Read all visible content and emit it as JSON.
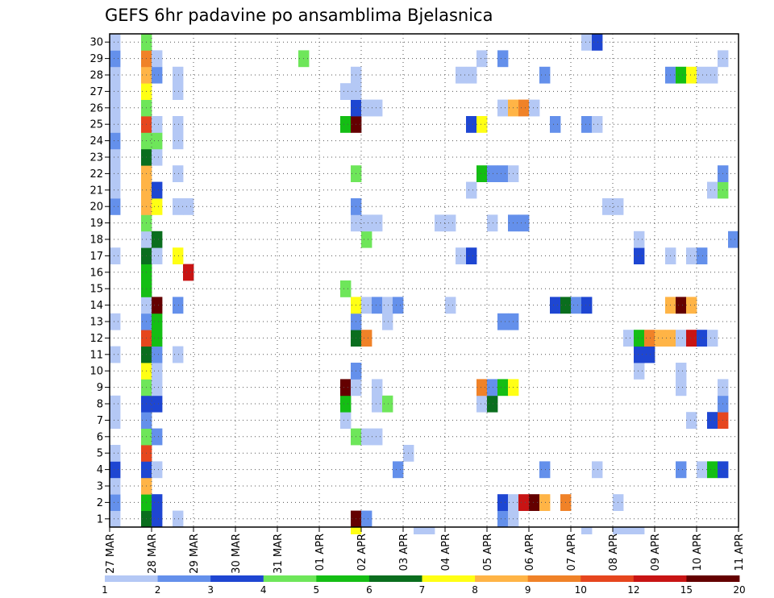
{
  "chart_data": {
    "type": "heatmap",
    "title": "GEFS 6hr padavine po ansamblima Bjelasnica",
    "xlabel": "",
    "ylabel": "",
    "x_tick_labels": [
      "27 MAR",
      "28 MAR",
      "29 MAR",
      "30 MAR",
      "31 MAR",
      "01 APR",
      "02 APR",
      "03 APR",
      "04 APR",
      "05 APR",
      "06 APR",
      "07 APR",
      "08 APR",
      "09 APR",
      "10 APR",
      "11 APR"
    ],
    "time_steps_per_day": 4,
    "n_time_steps": 60,
    "members": [
      1,
      2,
      3,
      4,
      5,
      6,
      7,
      8,
      9,
      10,
      11,
      12,
      13,
      14,
      15,
      16,
      17,
      18,
      19,
      20,
      21,
      22,
      23,
      24,
      25,
      26,
      27,
      28,
      29,
      30
    ],
    "grid": true,
    "legend_position": "bottom",
    "colorbar": {
      "levels": [
        "1",
        "2",
        "3",
        "4",
        "5",
        "6",
        "7",
        "8",
        "9",
        "10",
        "12",
        "15",
        "20"
      ],
      "colors": [
        "#b4c8f5",
        "#6490eb",
        "#1e46d2",
        "#6ee65a",
        "#14be14",
        "#0a6e1e",
        "#ffff14",
        "#ffb446",
        "#f08228",
        "#e6461e",
        "#c81414",
        "#640000"
      ]
    },
    "cells": [
      {
        "m": 1,
        "t": 0,
        "c": 1
      },
      {
        "m": 1,
        "t": 3,
        "c": 6
      },
      {
        "m": 1,
        "t": 4,
        "c": 3
      },
      {
        "m": 1,
        "t": 6,
        "c": 1
      },
      {
        "m": 1,
        "t": 23,
        "c": 12
      },
      {
        "m": 1,
        "t": 24,
        "c": 2
      },
      {
        "m": 1,
        "t": 37,
        "c": 2
      },
      {
        "m": 1,
        "t": 38,
        "c": 1
      },
      {
        "m": 2,
        "t": 0,
        "c": 2
      },
      {
        "m": 2,
        "t": 3,
        "c": 5
      },
      {
        "m": 2,
        "t": 4,
        "c": 3
      },
      {
        "m": 2,
        "t": 37,
        "c": 3
      },
      {
        "m": 2,
        "t": 38,
        "c": 1
      },
      {
        "m": 2,
        "t": 39,
        "c": 11
      },
      {
        "m": 2,
        "t": 40,
        "c": 12
      },
      {
        "m": 2,
        "t": 41,
        "c": 8
      },
      {
        "m": 2,
        "t": 43,
        "c": 9
      },
      {
        "m": 2,
        "t": 48,
        "c": 1
      },
      {
        "m": 3,
        "t": 0,
        "c": 1
      },
      {
        "m": 3,
        "t": 3,
        "c": 8
      },
      {
        "m": 4,
        "t": 0,
        "c": 3
      },
      {
        "m": 4,
        "t": 3,
        "c": 3
      },
      {
        "m": 4,
        "t": 4,
        "c": 1
      },
      {
        "m": 4,
        "t": 27,
        "c": 2
      },
      {
        "m": 4,
        "t": 41,
        "c": 2
      },
      {
        "m": 4,
        "t": 46,
        "c": 1
      },
      {
        "m": 4,
        "t": 54,
        "c": 2
      },
      {
        "m": 4,
        "t": 56,
        "c": 1
      },
      {
        "m": 4,
        "t": 57,
        "c": 5
      },
      {
        "m": 4,
        "t": 58,
        "c": 3
      },
      {
        "m": 5,
        "t": 0,
        "c": 1
      },
      {
        "m": 5,
        "t": 3,
        "c": 10
      },
      {
        "m": 5,
        "t": 28,
        "c": 1
      },
      {
        "m": 6,
        "t": 3,
        "c": 4
      },
      {
        "m": 6,
        "t": 4,
        "c": 2
      },
      {
        "m": 6,
        "t": 23,
        "c": 4
      },
      {
        "m": 6,
        "t": 24,
        "c": 1
      },
      {
        "m": 6,
        "t": 25,
        "c": 1
      },
      {
        "m": 7,
        "t": 0,
        "c": 1
      },
      {
        "m": 7,
        "t": 3,
        "c": 2
      },
      {
        "m": 7,
        "t": 22,
        "c": 1
      },
      {
        "m": 7,
        "t": 55,
        "c": 1
      },
      {
        "m": 7,
        "t": 57,
        "c": 3
      },
      {
        "m": 7,
        "t": 58,
        "c": 10
      },
      {
        "m": 8,
        "t": 0,
        "c": 1
      },
      {
        "m": 8,
        "t": 3,
        "c": 3
      },
      {
        "m": 8,
        "t": 4,
        "c": 3
      },
      {
        "m": 8,
        "t": 22,
        "c": 5
      },
      {
        "m": 8,
        "t": 25,
        "c": 1
      },
      {
        "m": 8,
        "t": 26,
        "c": 4
      },
      {
        "m": 8,
        "t": 35,
        "c": 1
      },
      {
        "m": 8,
        "t": 36,
        "c": 6
      },
      {
        "m": 8,
        "t": 58,
        "c": 2
      },
      {
        "m": 9,
        "t": 3,
        "c": 4
      },
      {
        "m": 9,
        "t": 4,
        "c": 1
      },
      {
        "m": 9,
        "t": 22,
        "c": 12
      },
      {
        "m": 9,
        "t": 23,
        "c": 1
      },
      {
        "m": 9,
        "t": 25,
        "c": 1
      },
      {
        "m": 9,
        "t": 35,
        "c": 9
      },
      {
        "m": 9,
        "t": 36,
        "c": 2
      },
      {
        "m": 9,
        "t": 37,
        "c": 5
      },
      {
        "m": 9,
        "t": 38,
        "c": 7
      },
      {
        "m": 9,
        "t": 54,
        "c": 1
      },
      {
        "m": 9,
        "t": 58,
        "c": 1
      },
      {
        "m": 10,
        "t": 3,
        "c": 7
      },
      {
        "m": 10,
        "t": 4,
        "c": 1
      },
      {
        "m": 10,
        "t": 23,
        "c": 2
      },
      {
        "m": 10,
        "t": 50,
        "c": 1
      },
      {
        "m": 10,
        "t": 54,
        "c": 1
      },
      {
        "m": 11,
        "t": 0,
        "c": 1
      },
      {
        "m": 11,
        "t": 3,
        "c": 6
      },
      {
        "m": 11,
        "t": 4,
        "c": 2
      },
      {
        "m": 11,
        "t": 6,
        "c": 1
      },
      {
        "m": 11,
        "t": 50,
        "c": 3
      },
      {
        "m": 11,
        "t": 51,
        "c": 3
      },
      {
        "m": 12,
        "t": 3,
        "c": 10
      },
      {
        "m": 12,
        "t": 4,
        "c": 5
      },
      {
        "m": 12,
        "t": 23,
        "c": 6
      },
      {
        "m": 12,
        "t": 24,
        "c": 9
      },
      {
        "m": 12,
        "t": 49,
        "c": 1
      },
      {
        "m": 12,
        "t": 50,
        "c": 5
      },
      {
        "m": 12,
        "t": 51,
        "c": 9
      },
      {
        "m": 12,
        "t": 52,
        "c": 8
      },
      {
        "m": 12,
        "t": 53,
        "c": 8
      },
      {
        "m": 12,
        "t": 54,
        "c": 1
      },
      {
        "m": 12,
        "t": 55,
        "c": 11
      },
      {
        "m": 12,
        "t": 56,
        "c": 3
      },
      {
        "m": 12,
        "t": 57,
        "c": 1
      },
      {
        "m": 13,
        "t": 0,
        "c": 1
      },
      {
        "m": 13,
        "t": 3,
        "c": 2
      },
      {
        "m": 13,
        "t": 4,
        "c": 5
      },
      {
        "m": 13,
        "t": 23,
        "c": 2
      },
      {
        "m": 13,
        "t": 26,
        "c": 1
      },
      {
        "m": 13,
        "t": 37,
        "c": 2
      },
      {
        "m": 13,
        "t": 38,
        "c": 2
      },
      {
        "m": 14,
        "t": 3,
        "c": 1
      },
      {
        "m": 14,
        "t": 4,
        "c": 12
      },
      {
        "m": 14,
        "t": 6,
        "c": 2
      },
      {
        "m": 14,
        "t": 23,
        "c": 7
      },
      {
        "m": 14,
        "t": 24,
        "c": 1
      },
      {
        "m": 14,
        "t": 25,
        "c": 2
      },
      {
        "m": 14,
        "t": 26,
        "c": 1
      },
      {
        "m": 14,
        "t": 27,
        "c": 2
      },
      {
        "m": 14,
        "t": 32,
        "c": 1
      },
      {
        "m": 14,
        "t": 42,
        "c": 3
      },
      {
        "m": 14,
        "t": 43,
        "c": 6
      },
      {
        "m": 14,
        "t": 44,
        "c": 2
      },
      {
        "m": 14,
        "t": 45,
        "c": 3
      },
      {
        "m": 14,
        "t": 53,
        "c": 8
      },
      {
        "m": 14,
        "t": 54,
        "c": 12
      },
      {
        "m": 14,
        "t": 55,
        "c": 8
      },
      {
        "m": 15,
        "t": 3,
        "c": 5
      },
      {
        "m": 15,
        "t": 22,
        "c": 4
      },
      {
        "m": 16,
        "t": 3,
        "c": 5
      },
      {
        "m": 16,
        "t": 7,
        "c": 11
      },
      {
        "m": 17,
        "t": 0,
        "c": 1
      },
      {
        "m": 17,
        "t": 3,
        "c": 6
      },
      {
        "m": 17,
        "t": 4,
        "c": 1
      },
      {
        "m": 17,
        "t": 6,
        "c": 7
      },
      {
        "m": 17,
        "t": 33,
        "c": 1
      },
      {
        "m": 17,
        "t": 34,
        "c": 3
      },
      {
        "m": 17,
        "t": 50,
        "c": 3
      },
      {
        "m": 17,
        "t": 53,
        "c": 1
      },
      {
        "m": 17,
        "t": 55,
        "c": 1
      },
      {
        "m": 17,
        "t": 56,
        "c": 2
      },
      {
        "m": 18,
        "t": 3,
        "c": 1
      },
      {
        "m": 18,
        "t": 4,
        "c": 6
      },
      {
        "m": 18,
        "t": 24,
        "c": 4
      },
      {
        "m": 18,
        "t": 50,
        "c": 1
      },
      {
        "m": 18,
        "t": 59,
        "c": 2
      },
      {
        "m": 19,
        "t": 3,
        "c": 4
      },
      {
        "m": 19,
        "t": 23,
        "c": 1
      },
      {
        "m": 19,
        "t": 24,
        "c": 1
      },
      {
        "m": 19,
        "t": 25,
        "c": 1
      },
      {
        "m": 19,
        "t": 31,
        "c": 1
      },
      {
        "m": 19,
        "t": 32,
        "c": 1
      },
      {
        "m": 19,
        "t": 36,
        "c": 1
      },
      {
        "m": 19,
        "t": 38,
        "c": 2
      },
      {
        "m": 19,
        "t": 39,
        "c": 2
      },
      {
        "m": 20,
        "t": 0,
        "c": 2
      },
      {
        "m": 20,
        "t": 3,
        "c": 8
      },
      {
        "m": 20,
        "t": 4,
        "c": 7
      },
      {
        "m": 20,
        "t": 6,
        "c": 1
      },
      {
        "m": 20,
        "t": 7,
        "c": 1
      },
      {
        "m": 20,
        "t": 23,
        "c": 2
      },
      {
        "m": 20,
        "t": 47,
        "c": 1
      },
      {
        "m": 20,
        "t": 48,
        "c": 1
      },
      {
        "m": 21,
        "t": 0,
        "c": 1
      },
      {
        "m": 21,
        "t": 3,
        "c": 8
      },
      {
        "m": 21,
        "t": 4,
        "c": 3
      },
      {
        "m": 21,
        "t": 34,
        "c": 1
      },
      {
        "m": 21,
        "t": 57,
        "c": 1
      },
      {
        "m": 21,
        "t": 58,
        "c": 4
      },
      {
        "m": 22,
        "t": 0,
        "c": 1
      },
      {
        "m": 22,
        "t": 3,
        "c": 8
      },
      {
        "m": 22,
        "t": 6,
        "c": 1
      },
      {
        "m": 22,
        "t": 23,
        "c": 4
      },
      {
        "m": 22,
        "t": 35,
        "c": 5
      },
      {
        "m": 22,
        "t": 36,
        "c": 2
      },
      {
        "m": 22,
        "t": 37,
        "c": 2
      },
      {
        "m": 22,
        "t": 38,
        "c": 1
      },
      {
        "m": 22,
        "t": 58,
        "c": 2
      },
      {
        "m": 23,
        "t": 0,
        "c": 1
      },
      {
        "m": 23,
        "t": 3,
        "c": 6
      },
      {
        "m": 23,
        "t": 4,
        "c": 1
      },
      {
        "m": 24,
        "t": 0,
        "c": 2
      },
      {
        "m": 24,
        "t": 3,
        "c": 4
      },
      {
        "m": 24,
        "t": 4,
        "c": 4
      },
      {
        "m": 24,
        "t": 6,
        "c": 1
      },
      {
        "m": 25,
        "t": 0,
        "c": 1
      },
      {
        "m": 25,
        "t": 3,
        "c": 10
      },
      {
        "m": 25,
        "t": 4,
        "c": 1
      },
      {
        "m": 25,
        "t": 6,
        "c": 1
      },
      {
        "m": 25,
        "t": 22,
        "c": 5
      },
      {
        "m": 25,
        "t": 23,
        "c": 12
      },
      {
        "m": 25,
        "t": 34,
        "c": 3
      },
      {
        "m": 25,
        "t": 35,
        "c": 7
      },
      {
        "m": 25,
        "t": 42,
        "c": 2
      },
      {
        "m": 25,
        "t": 45,
        "c": 2
      },
      {
        "m": 25,
        "t": 46,
        "c": 1
      },
      {
        "m": 26,
        "t": 0,
        "c": 1
      },
      {
        "m": 26,
        "t": 3,
        "c": 4
      },
      {
        "m": 26,
        "t": 23,
        "c": 3
      },
      {
        "m": 26,
        "t": 24,
        "c": 1
      },
      {
        "m": 26,
        "t": 25,
        "c": 1
      },
      {
        "m": 26,
        "t": 37,
        "c": 1
      },
      {
        "m": 26,
        "t": 38,
        "c": 8
      },
      {
        "m": 26,
        "t": 39,
        "c": 9
      },
      {
        "m": 26,
        "t": 40,
        "c": 1
      },
      {
        "m": 27,
        "t": 0,
        "c": 1
      },
      {
        "m": 27,
        "t": 3,
        "c": 7
      },
      {
        "m": 27,
        "t": 6,
        "c": 1
      },
      {
        "m": 27,
        "t": 22,
        "c": 1
      },
      {
        "m": 27,
        "t": 23,
        "c": 1
      },
      {
        "m": 28,
        "t": 0,
        "c": 1
      },
      {
        "m": 28,
        "t": 3,
        "c": 8
      },
      {
        "m": 28,
        "t": 4,
        "c": 2
      },
      {
        "m": 28,
        "t": 6,
        "c": 1
      },
      {
        "m": 28,
        "t": 23,
        "c": 1
      },
      {
        "m": 28,
        "t": 33,
        "c": 1
      },
      {
        "m": 28,
        "t": 34,
        "c": 1
      },
      {
        "m": 28,
        "t": 41,
        "c": 2
      },
      {
        "m": 28,
        "t": 53,
        "c": 2
      },
      {
        "m": 28,
        "t": 54,
        "c": 5
      },
      {
        "m": 28,
        "t": 55,
        "c": 7
      },
      {
        "m": 28,
        "t": 56,
        "c": 1
      },
      {
        "m": 28,
        "t": 57,
        "c": 1
      },
      {
        "m": 29,
        "t": 0,
        "c": 2
      },
      {
        "m": 29,
        "t": 3,
        "c": 9
      },
      {
        "m": 29,
        "t": 4,
        "c": 1
      },
      {
        "m": 29,
        "t": 18,
        "c": 4
      },
      {
        "m": 29,
        "t": 35,
        "c": 1
      },
      {
        "m": 29,
        "t": 37,
        "c": 2
      },
      {
        "m": 29,
        "t": 58,
        "c": 1
      },
      {
        "m": 30,
        "t": 0,
        "c": 1
      },
      {
        "m": 30,
        "t": 3,
        "c": 4
      },
      {
        "m": 30,
        "t": 45,
        "c": 1
      },
      {
        "m": 30,
        "t": 46,
        "c": 3
      }
    ],
    "edge_cells": [
      {
        "t": 23,
        "c": 7
      },
      {
        "t": 29,
        "c": 1
      },
      {
        "t": 30,
        "c": 1
      },
      {
        "t": 45,
        "c": 1
      },
      {
        "t": 48,
        "c": 1
      },
      {
        "t": 49,
        "c": 1
      },
      {
        "t": 50,
        "c": 1
      }
    ]
  }
}
